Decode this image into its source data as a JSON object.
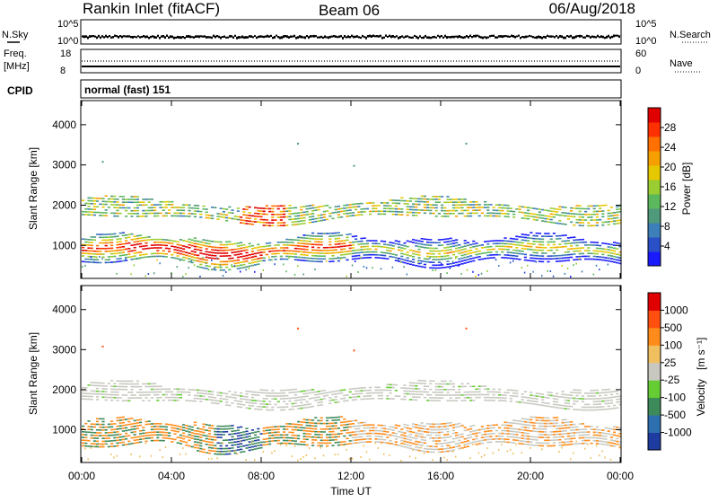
{
  "header": {
    "station": "Rankin Inlet (fitACF)",
    "beam": "Beam 06",
    "date": "06/Aug/2018"
  },
  "noise_panel": {
    "left_label": "N.Sky",
    "right_label": "N.Search",
    "left_ticks": [
      "10^5",
      "10^0"
    ],
    "right_ticks": [
      "10^5",
      "10^0"
    ]
  },
  "freq_panel": {
    "left_label_1": "Freq.",
    "left_label_2": "[MHz]",
    "right_label": "Nave",
    "left_ticks": [
      "18",
      "8"
    ],
    "right_ticks": [
      "60",
      "0"
    ]
  },
  "cpid": {
    "label": "CPID",
    "mode": "normal (fast) 151"
  },
  "chart_data": [
    {
      "type": "heatmap",
      "name": "power",
      "ylabel": "Slant Range [km]",
      "ylim": [
        180,
        4600
      ],
      "yticks": [
        "4000",
        "3000",
        "2000",
        "1000"
      ],
      "xlim_hours": [
        0,
        24
      ],
      "colorbar": {
        "label": "Power [dB]",
        "ticks": [
          "28",
          "24",
          "20",
          "16",
          "12",
          "8",
          "4"
        ],
        "colors": [
          "#1a1aff",
          "#2a50c8",
          "#3d7fb8",
          "#4f9a7a",
          "#5cb85c",
          "#9acd32",
          "#e6c800",
          "#f5a000",
          "#ff7000",
          "#ff3000",
          "#e00000"
        ]
      },
      "bands": [
        {
          "t0": 0.0,
          "t1": 24.0,
          "r_center": 900,
          "r_width": 350,
          "intensity": "high"
        },
        {
          "t0": 0.0,
          "t1": 24.0,
          "r_center": 1800,
          "r_width": 280,
          "intensity": "medium"
        }
      ]
    },
    {
      "type": "heatmap",
      "name": "velocity",
      "ylabel": "Slant Range [km]",
      "ylim": [
        180,
        4600
      ],
      "yticks": [
        "4000",
        "3000",
        "2000",
        "1000"
      ],
      "xlim_hours": [
        0,
        24
      ],
      "colorbar": {
        "label_main": "Velocity",
        "label_unit": "[m s⁻¹]",
        "ticks": [
          "1000",
          "500",
          "100",
          "25",
          "-25",
          "-100",
          "-500",
          "-1000"
        ],
        "colors": [
          "#1e3ca0",
          "#2e6fb0",
          "#3d8a5a",
          "#66cc33",
          "#c8c8c0",
          "#f0c060",
          "#ff8c1a",
          "#ff5010",
          "#e00000"
        ]
      }
    }
  ],
  "xaxis": {
    "ticks": [
      "00:00",
      "04:00",
      "08:00",
      "12:00",
      "16:00",
      "20:00",
      "00:00"
    ],
    "label": "Time UT"
  },
  "colors": {
    "axis": "#000000",
    "velocity_gray": "#c8c8c0"
  }
}
